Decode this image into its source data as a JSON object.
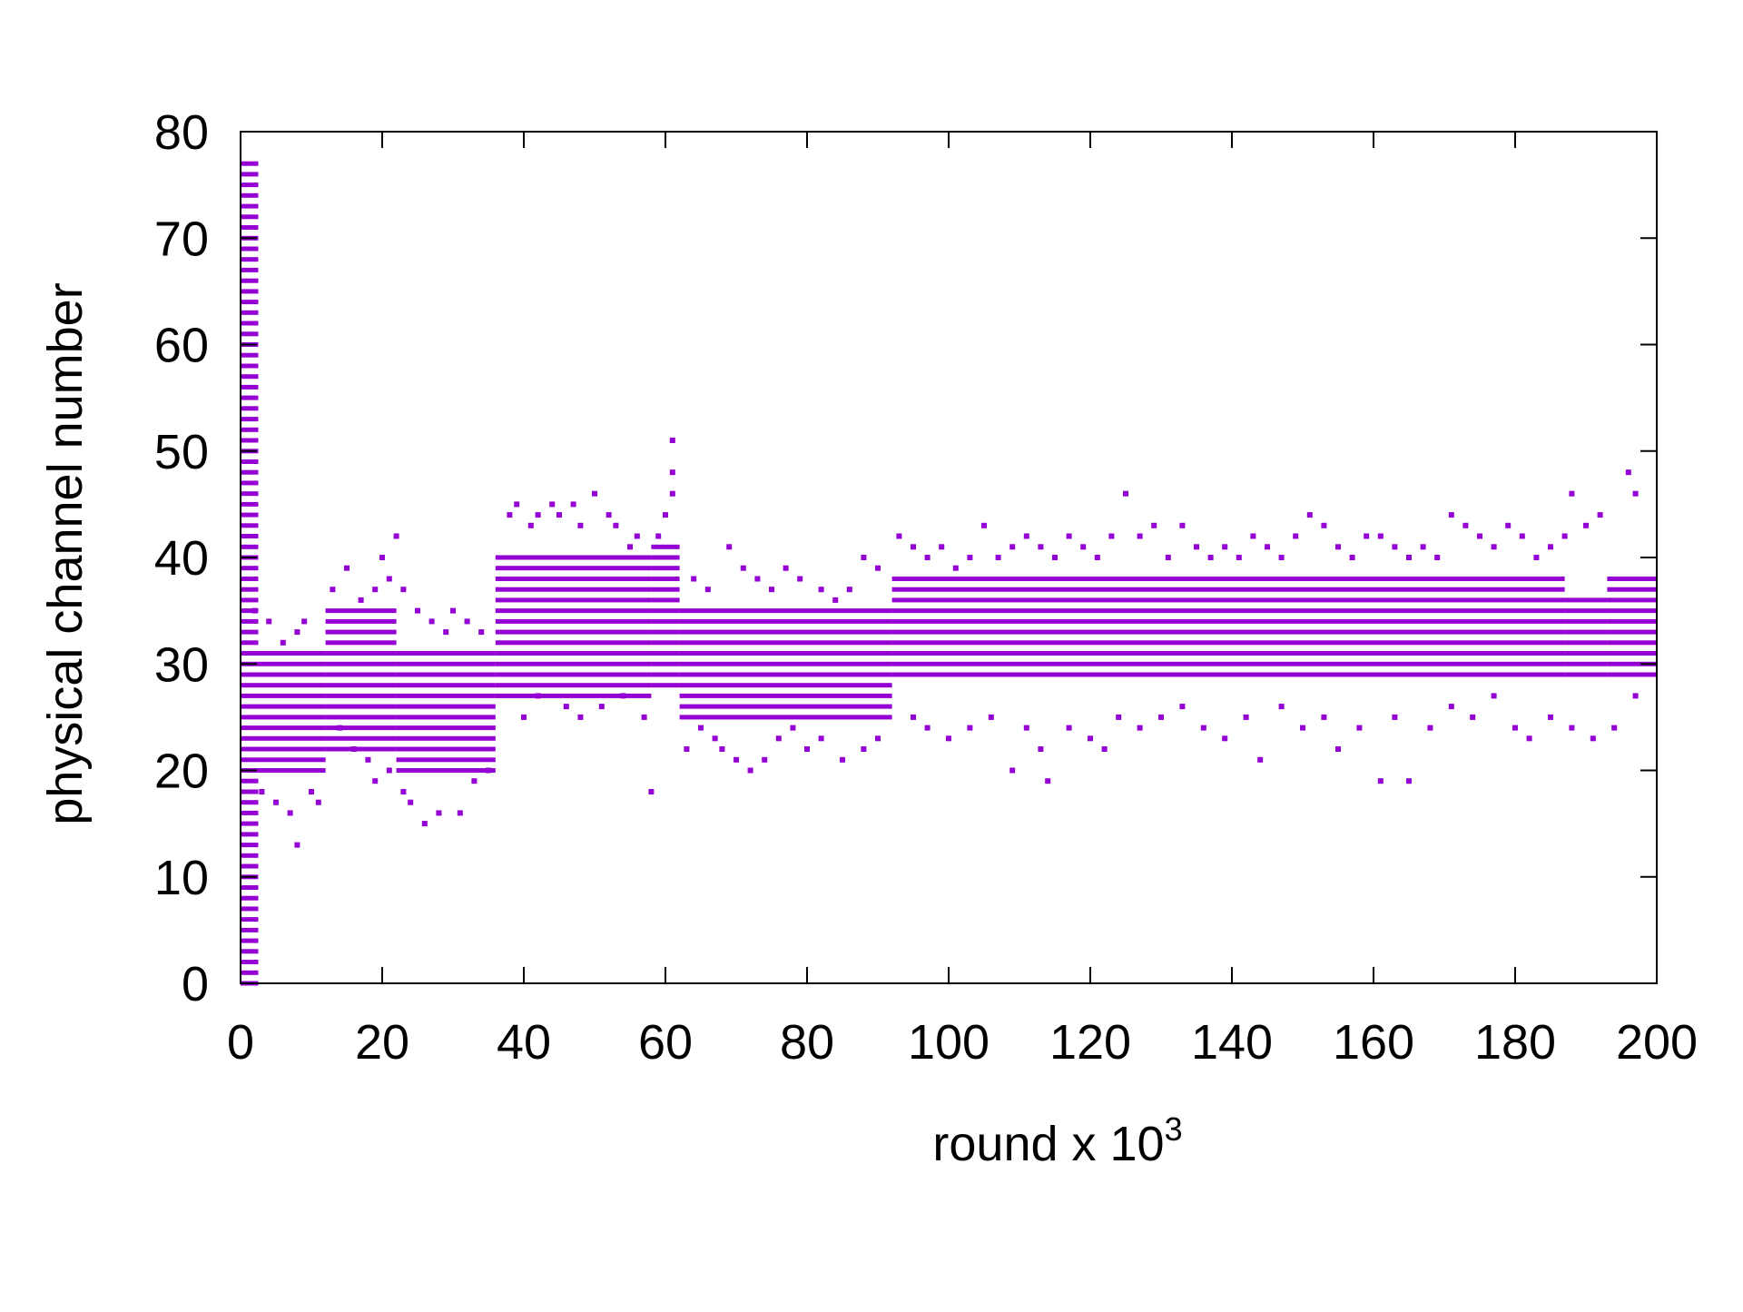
{
  "colors": {
    "series": "#9400d3",
    "axes": "#000000",
    "background": "#ffffff"
  },
  "chart_data": {
    "type": "scatter",
    "title": "",
    "xlabel": {
      "base": "round x 10",
      "superscript": "3"
    },
    "ylabel": "physical channel number",
    "xlim": [
      0,
      200
    ],
    "ylim": [
      0,
      80
    ],
    "xticks": [
      0,
      20,
      40,
      60,
      80,
      100,
      120,
      140,
      160,
      180,
      200
    ],
    "yticks": [
      0,
      10,
      20,
      30,
      40,
      50,
      60,
      70,
      80
    ],
    "grid": false,
    "legend": "none",
    "marker": "square",
    "bands": [
      {
        "x": [
          0,
          2.5
        ],
        "y": [
          0,
          77
        ]
      },
      {
        "x": [
          2.5,
          12
        ],
        "y": [
          20,
          31
        ]
      },
      {
        "x": [
          12,
          22
        ],
        "y": [
          22,
          35
        ]
      },
      {
        "x": [
          22,
          36
        ],
        "y": [
          20,
          31
        ]
      },
      {
        "x": [
          36,
          58
        ],
        "y": [
          27,
          40
        ]
      },
      {
        "x": [
          58,
          62
        ],
        "y": [
          28,
          41
        ]
      },
      {
        "x": [
          62,
          92
        ],
        "y": [
          25,
          35
        ]
      },
      {
        "x": [
          92,
          187
        ],
        "y": [
          29,
          38
        ]
      },
      {
        "x": [
          187,
          193
        ],
        "y": [
          29,
          36
        ]
      },
      {
        "x": [
          193,
          200
        ],
        "y": [
          29,
          38
        ]
      }
    ],
    "scatter_points": [
      [
        2,
        35
      ],
      [
        4,
        34
      ],
      [
        6,
        32
      ],
      [
        8,
        33
      ],
      [
        9,
        34
      ],
      [
        3,
        18
      ],
      [
        5,
        17
      ],
      [
        7,
        16
      ],
      [
        8,
        13
      ],
      [
        10,
        18
      ],
      [
        11,
        17
      ],
      [
        13,
        37
      ],
      [
        15,
        39
      ],
      [
        17,
        36
      ],
      [
        19,
        37
      ],
      [
        20,
        40
      ],
      [
        21,
        38
      ],
      [
        22,
        42
      ],
      [
        23,
        37
      ],
      [
        14,
        24
      ],
      [
        16,
        22
      ],
      [
        18,
        21
      ],
      [
        19,
        19
      ],
      [
        21,
        20
      ],
      [
        23,
        18
      ],
      [
        24,
        17
      ],
      [
        26,
        15
      ],
      [
        28,
        16
      ],
      [
        31,
        16
      ],
      [
        25,
        35
      ],
      [
        27,
        34
      ],
      [
        29,
        33
      ],
      [
        30,
        35
      ],
      [
        32,
        34
      ],
      [
        34,
        33
      ],
      [
        33,
        19
      ],
      [
        35,
        20
      ],
      [
        38,
        44
      ],
      [
        39,
        45
      ],
      [
        41,
        43
      ],
      [
        42,
        44
      ],
      [
        44,
        45
      ],
      [
        45,
        44
      ],
      [
        47,
        45
      ],
      [
        48,
        43
      ],
      [
        50,
        46
      ],
      [
        52,
        44
      ],
      [
        53,
        43
      ],
      [
        55,
        41
      ],
      [
        56,
        42
      ],
      [
        40,
        25
      ],
      [
        42,
        27
      ],
      [
        46,
        26
      ],
      [
        48,
        25
      ],
      [
        51,
        26
      ],
      [
        54,
        27
      ],
      [
        57,
        25
      ],
      [
        58,
        18
      ],
      [
        60,
        44
      ],
      [
        61,
        46
      ],
      [
        61,
        48
      ],
      [
        61,
        51
      ],
      [
        59,
        42
      ],
      [
        63,
        22
      ],
      [
        65,
        24
      ],
      [
        67,
        23
      ],
      [
        68,
        22
      ],
      [
        70,
        21
      ],
      [
        72,
        20
      ],
      [
        74,
        21
      ],
      [
        76,
        23
      ],
      [
        78,
        24
      ],
      [
        80,
        22
      ],
      [
        82,
        23
      ],
      [
        85,
        21
      ],
      [
        88,
        22
      ],
      [
        90,
        23
      ],
      [
        64,
        38
      ],
      [
        66,
        37
      ],
      [
        69,
        41
      ],
      [
        71,
        39
      ],
      [
        73,
        38
      ],
      [
        75,
        37
      ],
      [
        77,
        39
      ],
      [
        79,
        38
      ],
      [
        82,
        37
      ],
      [
        84,
        36
      ],
      [
        86,
        37
      ],
      [
        88,
        40
      ],
      [
        90,
        39
      ],
      [
        93,
        42
      ],
      [
        95,
        41
      ],
      [
        97,
        40
      ],
      [
        99,
        41
      ],
      [
        101,
        39
      ],
      [
        103,
        40
      ],
      [
        105,
        43
      ],
      [
        107,
        40
      ],
      [
        109,
        41
      ],
      [
        111,
        42
      ],
      [
        113,
        41
      ],
      [
        115,
        40
      ],
      [
        117,
        42
      ],
      [
        119,
        41
      ],
      [
        121,
        40
      ],
      [
        123,
        42
      ],
      [
        125,
        46
      ],
      [
        127,
        42
      ],
      [
        129,
        43
      ],
      [
        131,
        40
      ],
      [
        133,
        43
      ],
      [
        135,
        41
      ],
      [
        137,
        40
      ],
      [
        139,
        41
      ],
      [
        141,
        40
      ],
      [
        143,
        42
      ],
      [
        145,
        41
      ],
      [
        147,
        40
      ],
      [
        149,
        42
      ],
      [
        151,
        44
      ],
      [
        153,
        43
      ],
      [
        155,
        41
      ],
      [
        157,
        40
      ],
      [
        159,
        42
      ],
      [
        161,
        42
      ],
      [
        163,
        41
      ],
      [
        165,
        40
      ],
      [
        167,
        41
      ],
      [
        169,
        40
      ],
      [
        171,
        44
      ],
      [
        173,
        43
      ],
      [
        175,
        42
      ],
      [
        177,
        41
      ],
      [
        179,
        43
      ],
      [
        181,
        42
      ],
      [
        183,
        40
      ],
      [
        185,
        41
      ],
      [
        187,
        42
      ],
      [
        188,
        46
      ],
      [
        190,
        43
      ],
      [
        192,
        44
      ],
      [
        196,
        48
      ],
      [
        197,
        46
      ],
      [
        95,
        25
      ],
      [
        97,
        24
      ],
      [
        100,
        23
      ],
      [
        103,
        24
      ],
      [
        106,
        25
      ],
      [
        109,
        20
      ],
      [
        111,
        24
      ],
      [
        113,
        22
      ],
      [
        114,
        19
      ],
      [
        117,
        24
      ],
      [
        120,
        23
      ],
      [
        122,
        22
      ],
      [
        124,
        25
      ],
      [
        127,
        24
      ],
      [
        130,
        25
      ],
      [
        133,
        26
      ],
      [
        136,
        24
      ],
      [
        139,
        23
      ],
      [
        142,
        25
      ],
      [
        144,
        21
      ],
      [
        147,
        26
      ],
      [
        150,
        24
      ],
      [
        153,
        25
      ],
      [
        155,
        22
      ],
      [
        158,
        24
      ],
      [
        161,
        19
      ],
      [
        163,
        25
      ],
      [
        165,
        19
      ],
      [
        168,
        24
      ],
      [
        171,
        26
      ],
      [
        174,
        25
      ],
      [
        177,
        27
      ],
      [
        180,
        24
      ],
      [
        182,
        23
      ],
      [
        185,
        25
      ],
      [
        188,
        24
      ],
      [
        191,
        23
      ],
      [
        194,
        24
      ],
      [
        197,
        27
      ]
    ]
  }
}
